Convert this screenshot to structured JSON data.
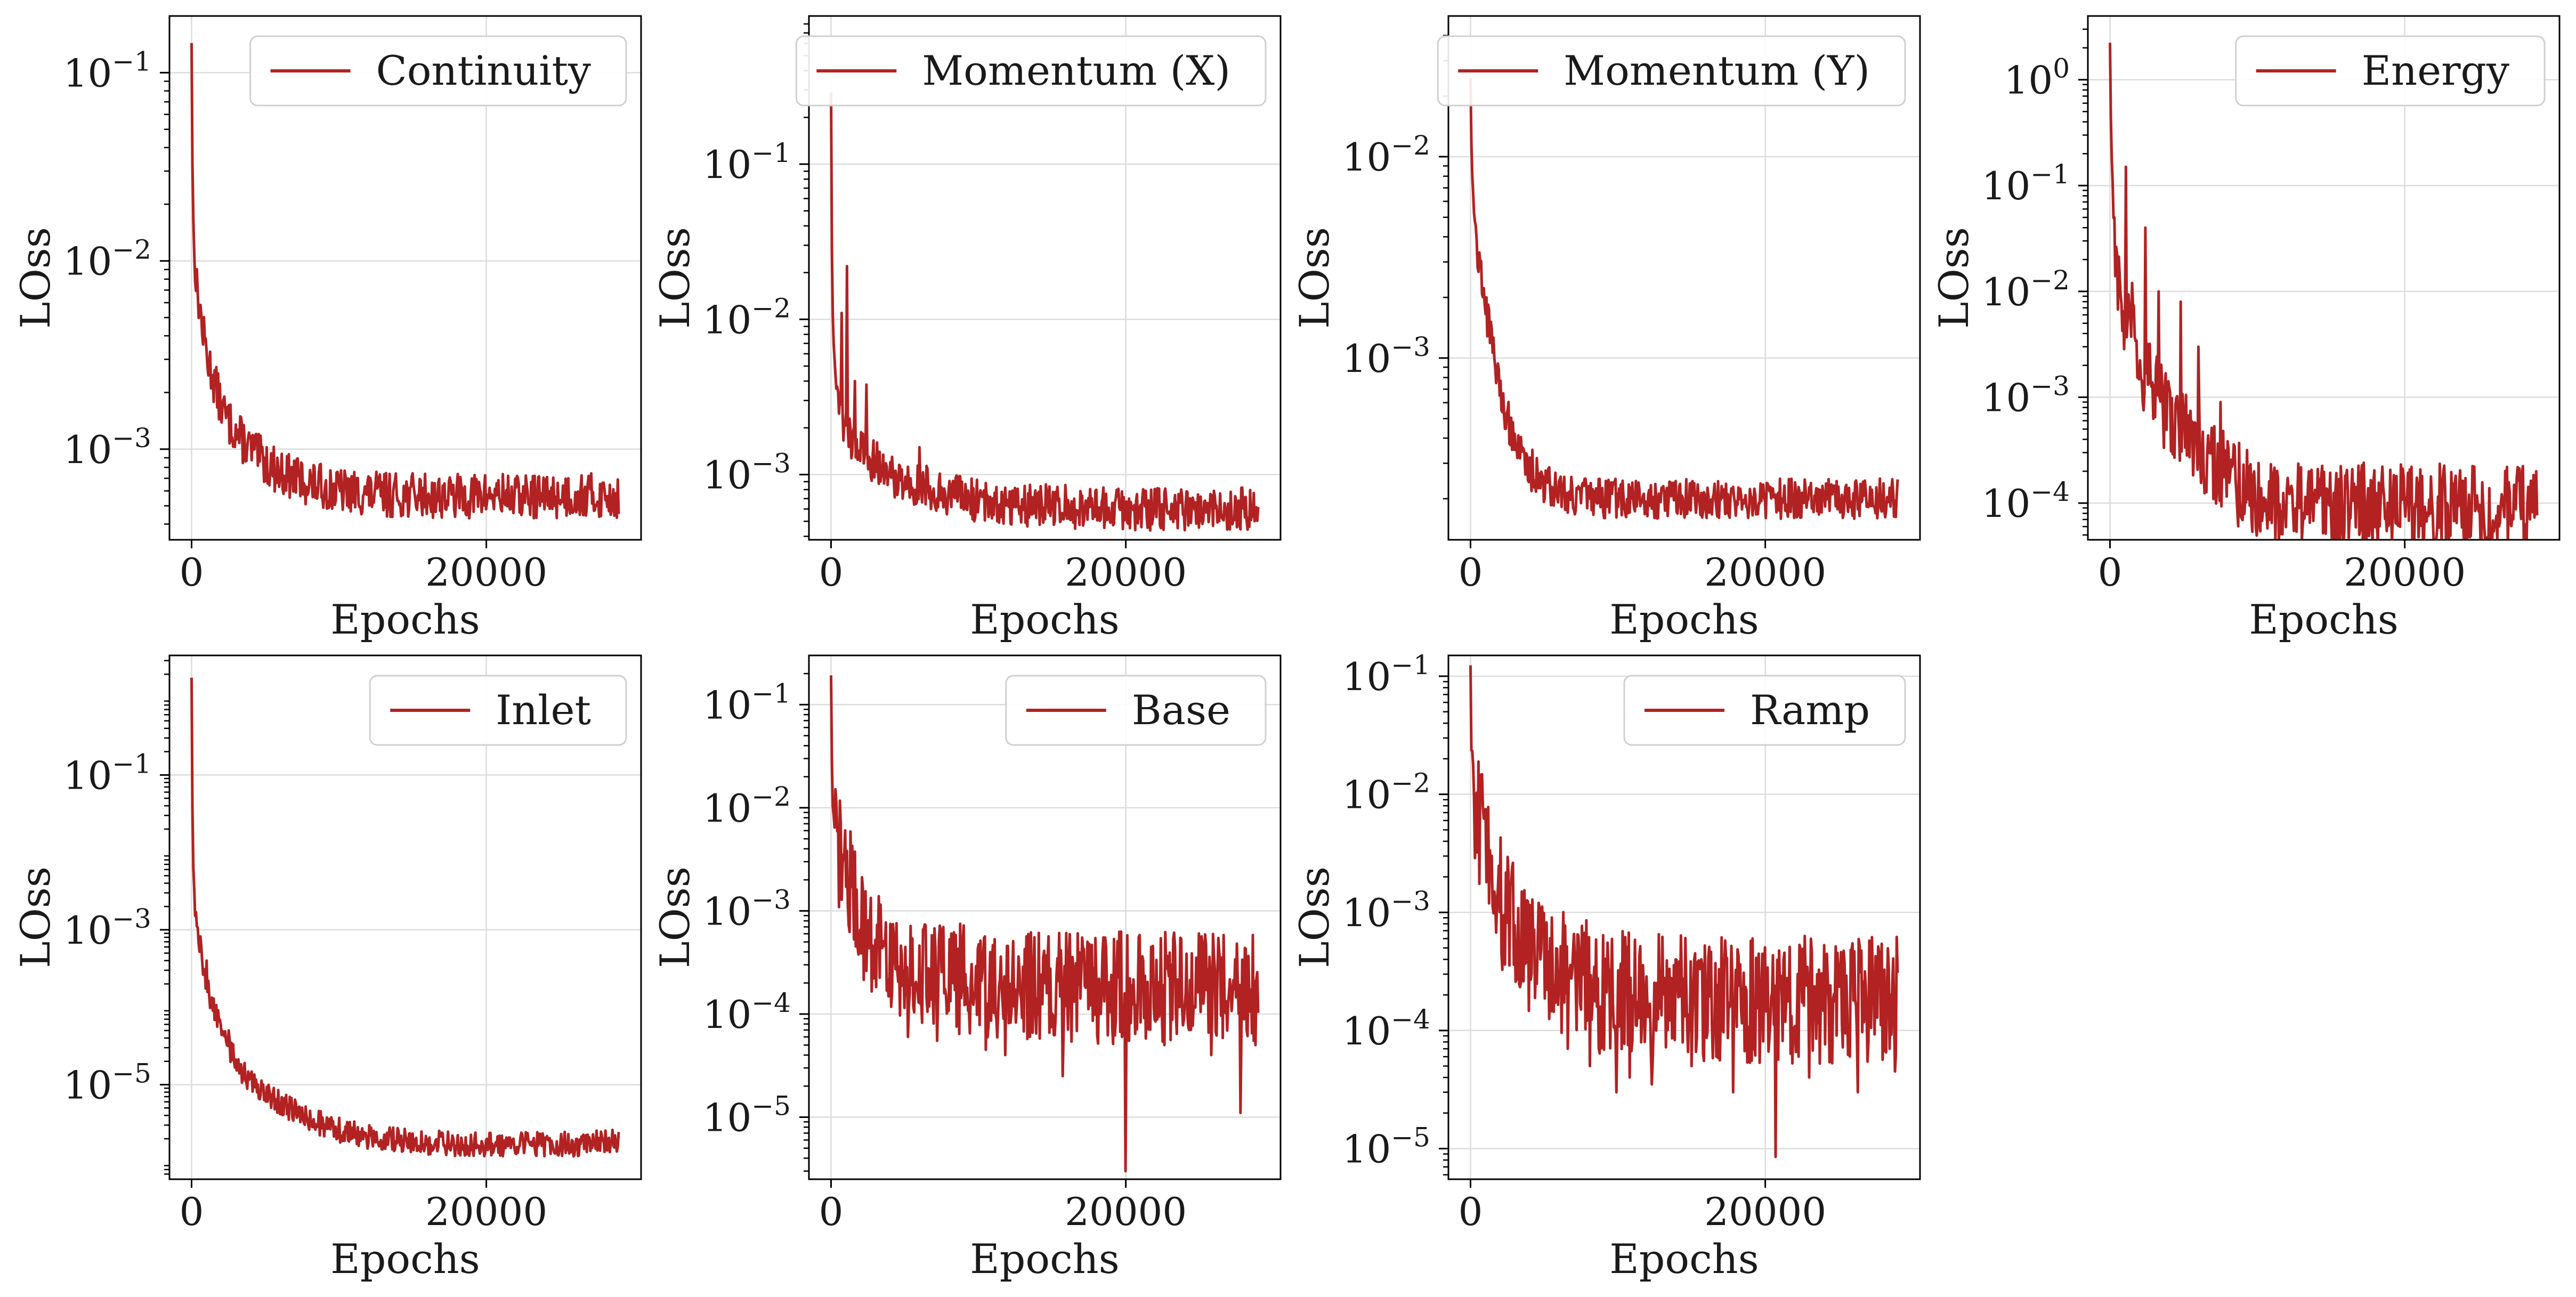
{
  "figure": {
    "series_color": "#b22222"
  },
  "chart_data": [
    {
      "type": "line",
      "legend": "Continuity",
      "legend_loc": "upper right",
      "xlabel": "Epochs",
      "ylabel": "LOss",
      "yscale": "log",
      "grid": true,
      "xlim": [
        -1500,
        30500
      ],
      "ylim": [
        0.00033,
        0.2
      ],
      "xticks": [
        {
          "v": 0,
          "t": "0"
        },
        {
          "v": 20000,
          "t": "20000"
        }
      ],
      "yticks": [
        {
          "v": 0.1,
          "b": "10",
          "e": "−1"
        },
        {
          "v": 0.01,
          "b": "10",
          "e": "−2"
        },
        {
          "v": 0.001,
          "b": "10",
          "e": "−3"
        }
      ],
      "x": [
        0,
        80,
        250,
        500,
        800,
        1200,
        1600,
        2000,
        2500,
        3000,
        3500,
        4000,
        5000,
        6000,
        7000,
        8000,
        9000,
        10000,
        12000,
        14000,
        16000,
        18000,
        20000,
        22000,
        24000,
        26000,
        28000,
        29000
      ],
      "y": [
        0.15,
        0.02,
        0.008,
        0.006,
        0.004,
        0.0028,
        0.0022,
        0.0017,
        0.0014,
        0.00125,
        0.0011,
        0.001,
        0.00085,
        0.00075,
        0.0007,
        0.00066,
        0.00063,
        0.0006,
        0.00058,
        0.00057,
        0.00057,
        0.00056,
        0.00057,
        0.00056,
        0.00056,
        0.00057,
        0.00056,
        0.00056
      ],
      "noise": 0.12,
      "spikes": []
    },
    {
      "type": "line",
      "legend": "Momentum (X)",
      "legend_loc": "upper right",
      "xlabel": "Epochs",
      "ylabel": "LOss",
      "yscale": "log",
      "grid": true,
      "xlim": [
        -1500,
        30500
      ],
      "ylim": [
        0.00038,
        0.9
      ],
      "xticks": [
        {
          "v": 0,
          "t": "0"
        },
        {
          "v": 20000,
          "t": "20000"
        }
      ],
      "yticks": [
        {
          "v": 0.1,
          "b": "10",
          "e": "−1"
        },
        {
          "v": 0.01,
          "b": "10",
          "e": "−2"
        },
        {
          "v": 0.001,
          "b": "10",
          "e": "−3"
        }
      ],
      "x": [
        0,
        80,
        250,
        500,
        800,
        1200,
        1600,
        2000,
        2500,
        3000,
        3500,
        4000,
        5000,
        6000,
        7000,
        8000,
        9000,
        10000,
        12000,
        14000,
        16000,
        18000,
        20000,
        22000,
        24000,
        26000,
        28000,
        29000
      ],
      "y": [
        0.3,
        0.012,
        0.005,
        0.003,
        0.0022,
        0.0018,
        0.0016,
        0.0014,
        0.0013,
        0.0012,
        0.0011,
        0.001,
        0.0009,
        0.00085,
        0.0008,
        0.00075,
        0.0007,
        0.00068,
        0.00065,
        0.00063,
        0.00062,
        0.00061,
        0.0006,
        0.0006,
        0.0006,
        0.0006,
        0.0006,
        0.0006
      ],
      "noise": 0.14,
      "spikes": [
        [
          700,
          0.011
        ],
        [
          1100,
          0.022
        ],
        [
          1600,
          0.004
        ],
        [
          2400,
          0.0038
        ],
        [
          6000,
          0.0015
        ]
      ]
    },
    {
      "type": "line",
      "legend": "Momentum (Y)",
      "legend_loc": "upper right",
      "xlabel": "Epochs",
      "ylabel": "LOss",
      "yscale": "log",
      "grid": true,
      "xlim": [
        -1500,
        30500
      ],
      "ylim": [
        0.000125,
        0.05
      ],
      "xticks": [
        {
          "v": 0,
          "t": "0"
        },
        {
          "v": 20000,
          "t": "20000"
        }
      ],
      "yticks": [
        {
          "v": 0.01,
          "b": "10",
          "e": "−2"
        },
        {
          "v": 0.001,
          "b": "10",
          "e": "−3"
        }
      ],
      "x": [
        0,
        80,
        250,
        500,
        800,
        1200,
        1600,
        2000,
        2500,
        3000,
        3500,
        4000,
        5000,
        6000,
        7000,
        8000,
        9000,
        10000,
        12000,
        14000,
        16000,
        18000,
        20000,
        22000,
        24000,
        26000,
        28000,
        29000
      ],
      "y": [
        0.025,
        0.01,
        0.005,
        0.0032,
        0.0024,
        0.0015,
        0.001,
        0.0007,
        0.0005,
        0.0004,
        0.00032,
        0.00028,
        0.00024,
        0.00022,
        0.00021,
        0.0002,
        0.0002,
        0.0002,
        0.0002,
        0.0002,
        0.0002,
        0.0002,
        0.0002,
        0.0002,
        0.0002,
        0.0002,
        0.0002,
        0.0002
      ],
      "noise": 0.1,
      "spikes": [
        [
          1100,
          0.002
        ],
        [
          2500,
          0.00055
        ],
        [
          4200,
          0.00035
        ]
      ]
    },
    {
      "type": "line",
      "legend": "Energy",
      "legend_loc": "upper right",
      "xlabel": "Epochs",
      "ylabel": "LOss",
      "yscale": "log",
      "grid": true,
      "xlim": [
        -1500,
        30500
      ],
      "ylim": [
        4.5e-05,
        4.0
      ],
      "xticks": [
        {
          "v": 0,
          "t": "0"
        },
        {
          "v": 20000,
          "t": "20000"
        }
      ],
      "yticks": [
        {
          "v": 1,
          "b": "10",
          "e": "0"
        },
        {
          "v": 0.1,
          "b": "10",
          "e": "−1"
        },
        {
          "v": 0.01,
          "b": "10",
          "e": "−2"
        },
        {
          "v": 0.001,
          "b": "10",
          "e": "−3"
        },
        {
          "v": 0.0001,
          "b": "10",
          "e": "−4"
        }
      ],
      "x": [
        0,
        80,
        250,
        500,
        800,
        1200,
        1600,
        2000,
        2500,
        3000,
        3500,
        4000,
        5000,
        6000,
        7000,
        8000,
        9000,
        10000,
        12000,
        14000,
        16000,
        18000,
        20000,
        22000,
        24000,
        26000,
        28000,
        29000
      ],
      "y": [
        2.3,
        0.3,
        0.05,
        0.015,
        0.006,
        0.004,
        0.003,
        0.002,
        0.0015,
        0.0011,
        0.0009,
        0.0007,
        0.0005,
        0.00035,
        0.00025,
        0.00018,
        0.00014,
        0.00012,
        0.0001,
        0.0001,
        0.0001,
        9.5e-05,
        9.5e-05,
        9.5e-05,
        9e-05,
        9e-05,
        9e-05,
        9e-05
      ],
      "noise": 0.4,
      "spikes": [
        [
          300,
          0.05
        ],
        [
          1100,
          0.15
        ],
        [
          1500,
          0.012
        ],
        [
          2400,
          0.04
        ],
        [
          3300,
          0.01
        ],
        [
          4800,
          0.008
        ],
        [
          6000,
          0.003
        ],
        [
          7500,
          0.0009
        ]
      ]
    },
    {
      "type": "line",
      "legend": "Inlet",
      "legend_loc": "upper right",
      "xlabel": "Epochs",
      "ylabel": "LOss",
      "yscale": "log",
      "grid": true,
      "xlim": [
        -1500,
        30500
      ],
      "ylim": [
        6e-07,
        3.5
      ],
      "xticks": [
        {
          "v": 0,
          "t": "0"
        },
        {
          "v": 20000,
          "t": "20000"
        }
      ],
      "yticks": [
        {
          "v": 0.1,
          "b": "10",
          "e": "−1"
        },
        {
          "v": 0.001,
          "b": "10",
          "e": "−3"
        },
        {
          "v": 1e-05,
          "b": "10",
          "e": "−5"
        }
      ],
      "x": [
        0,
        80,
        250,
        500,
        800,
        1200,
        1600,
        2000,
        2500,
        3000,
        3500,
        4000,
        5000,
        6000,
        7000,
        8000,
        9000,
        10000,
        12000,
        14000,
        16000,
        18000,
        20000,
        22000,
        24000,
        26000,
        28000,
        29000
      ],
      "y": [
        1.8,
        0.01,
        0.0015,
        0.0008,
        0.00035,
        0.00015,
        9e-05,
        5e-05,
        3e-05,
        2e-05,
        1.4e-05,
        1.1e-05,
        7.8e-06,
        5.8e-06,
        4.5e-06,
        3.6e-06,
        3e-06,
        2.6e-06,
        2.1e-06,
        1.9e-06,
        1.8e-06,
        1.7e-06,
        1.7e-06,
        1.7e-06,
        1.7e-06,
        1.7e-06,
        1.8e-06,
        1.9e-06
      ],
      "noise": 0.16,
      "spikes": [
        [
          1000,
          0.0004
        ],
        [
          2000,
          6e-05
        ],
        [
          2500,
          5e-05
        ]
      ]
    },
    {
      "type": "line",
      "legend": "Base",
      "legend_loc": "upper right",
      "xlabel": "Epochs",
      "ylabel": "LOss",
      "yscale": "log",
      "grid": true,
      "xlim": [
        -1500,
        30500
      ],
      "ylim": [
        2.5e-06,
        0.3
      ],
      "xticks": [
        {
          "v": 0,
          "t": "0"
        },
        {
          "v": 20000,
          "t": "20000"
        }
      ],
      "yticks": [
        {
          "v": 0.1,
          "b": "10",
          "e": "−1"
        },
        {
          "v": 0.01,
          "b": "10",
          "e": "−2"
        },
        {
          "v": 0.001,
          "b": "10",
          "e": "−3"
        },
        {
          "v": 0.0001,
          "b": "10",
          "e": "−4"
        },
        {
          "v": 1e-05,
          "b": "10",
          "e": "−5"
        }
      ],
      "x": [
        0,
        80,
        250,
        500,
        800,
        1200,
        1600,
        2000,
        2500,
        3000,
        3500,
        4000,
        5000,
        6000,
        7000,
        8000,
        9000,
        10000,
        12000,
        14000,
        16000,
        18000,
        20000,
        22000,
        24000,
        26000,
        28000,
        29000
      ],
      "y": [
        0.18,
        0.01,
        0.005,
        0.004,
        0.003,
        0.002,
        0.0013,
        0.0009,
        0.0006,
        0.00045,
        0.00038,
        0.00033,
        0.00028,
        0.00026,
        0.00024,
        0.00022,
        0.00021,
        0.0002,
        0.00019,
        0.00018,
        0.00018,
        0.00018,
        0.00018,
        0.00018,
        0.00018,
        0.00018,
        0.00018,
        0.00018
      ],
      "noise": 0.55,
      "spikes": [
        [
          5200,
          6e-05
        ],
        [
          7200,
          5.5e-05
        ],
        [
          10500,
          4.5e-05
        ],
        [
          11800,
          4e-05
        ],
        [
          13500,
          6e-05
        ],
        [
          15700,
          2.5e-05
        ],
        [
          20000,
          3e-06
        ],
        [
          22600,
          5e-05
        ],
        [
          25800,
          4e-05
        ],
        [
          27800,
          1.1e-05
        ],
        [
          28800,
          5e-05
        ]
      ]
    },
    {
      "type": "line",
      "legend": "Ramp",
      "legend_loc": "upper right",
      "xlabel": "Epochs",
      "ylabel": "LOss",
      "yscale": "log",
      "grid": true,
      "xlim": [
        -1500,
        30500
      ],
      "ylim": [
        5.5e-06,
        0.15
      ],
      "xticks": [
        {
          "v": 0,
          "t": "0"
        },
        {
          "v": 20000,
          "t": "20000"
        }
      ],
      "yticks": [
        {
          "v": 0.1,
          "b": "10",
          "e": "−1"
        },
        {
          "v": 0.01,
          "b": "10",
          "e": "−2"
        },
        {
          "v": 0.001,
          "b": "10",
          "e": "−3"
        },
        {
          "v": 0.0001,
          "b": "10",
          "e": "−4"
        },
        {
          "v": 1e-05,
          "b": "10",
          "e": "−5"
        }
      ],
      "x": [
        0,
        80,
        250,
        500,
        800,
        1200,
        1600,
        2000,
        2500,
        3000,
        3500,
        4000,
        5000,
        6000,
        7000,
        8000,
        9000,
        10000,
        12000,
        14000,
        16000,
        18000,
        20000,
        22000,
        24000,
        26000,
        28000,
        29000
      ],
      "y": [
        0.11,
        0.02,
        0.009,
        0.0065,
        0.005,
        0.0035,
        0.002,
        0.0013,
        0.0009,
        0.0007,
        0.0006,
        0.0005,
        0.0004,
        0.00032,
        0.00028,
        0.00025,
        0.00022,
        0.0002,
        0.00019,
        0.00018,
        0.00018,
        0.00018,
        0.00018,
        0.00018,
        0.00018,
        0.00018,
        0.00018,
        0.00018
      ],
      "noise": 0.55,
      "spikes": [
        [
          6600,
          7e-05
        ],
        [
          8100,
          5e-05
        ],
        [
          9900,
          3e-05
        ],
        [
          10800,
          4e-05
        ],
        [
          12300,
          3.5e-05
        ],
        [
          15000,
          5e-05
        ],
        [
          17800,
          3e-05
        ],
        [
          20700,
          8.5e-06
        ],
        [
          23000,
          4e-05
        ],
        [
          26300,
          3e-05
        ],
        [
          28800,
          4.5e-05
        ]
      ]
    }
  ]
}
